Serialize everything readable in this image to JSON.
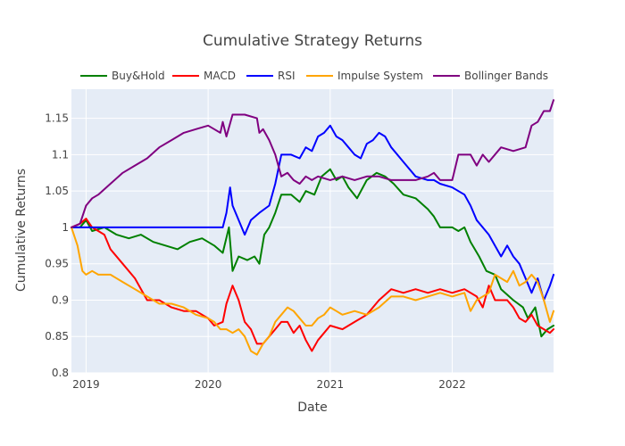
{
  "chart_data": {
    "type": "line",
    "title": "Cumulative Strategy Returns",
    "xlabel": "Date",
    "ylabel": "Cumulative Returns",
    "x_range": [
      "2018-11-20",
      "2022-11-01"
    ],
    "xlim": [
      2018.88,
      2022.83
    ],
    "ylim": [
      0.8,
      1.19
    ],
    "x_ticks": [
      {
        "label": "2019",
        "value": 2019.0
      },
      {
        "label": "2020",
        "value": 2020.0
      },
      {
        "label": "2021",
        "value": 2021.0
      },
      {
        "label": "2022",
        "value": 2022.0
      }
    ],
    "y_ticks": [
      {
        "label": "0.8",
        "value": 0.8
      },
      {
        "label": "0.85",
        "value": 0.85
      },
      {
        "label": "0.9",
        "value": 0.9
      },
      {
        "label": "0.95",
        "value": 0.95
      },
      {
        "label": "1",
        "value": 1.0
      },
      {
        "label": "1.05",
        "value": 1.05
      },
      {
        "label": "1.1",
        "value": 1.1
      },
      {
        "label": "1.15",
        "value": 1.15
      }
    ],
    "grid": true,
    "legend_position": "top",
    "background_color": "#e5ecf6",
    "series": [
      {
        "name": "Buy&Hold",
        "color": "#008000",
        "points": [
          [
            2018.88,
            1.0
          ],
          [
            2018.95,
            1.0
          ],
          [
            2019.0,
            1.01
          ],
          [
            2019.05,
            0.995
          ],
          [
            2019.15,
            1.0
          ],
          [
            2019.25,
            0.99
          ],
          [
            2019.35,
            0.985
          ],
          [
            2019.45,
            0.99
          ],
          [
            2019.55,
            0.98
          ],
          [
            2019.65,
            0.975
          ],
          [
            2019.75,
            0.97
          ],
          [
            2019.85,
            0.98
          ],
          [
            2019.95,
            0.985
          ],
          [
            2020.05,
            0.975
          ],
          [
            2020.12,
            0.965
          ],
          [
            2020.17,
            1.0
          ],
          [
            2020.2,
            0.94
          ],
          [
            2020.25,
            0.96
          ],
          [
            2020.32,
            0.955
          ],
          [
            2020.38,
            0.96
          ],
          [
            2020.42,
            0.95
          ],
          [
            2020.46,
            0.99
          ],
          [
            2020.5,
            1.0
          ],
          [
            2020.55,
            1.02
          ],
          [
            2020.6,
            1.045
          ],
          [
            2020.68,
            1.045
          ],
          [
            2020.75,
            1.035
          ],
          [
            2020.8,
            1.05
          ],
          [
            2020.87,
            1.045
          ],
          [
            2020.93,
            1.07
          ],
          [
            2021.0,
            1.08
          ],
          [
            2021.05,
            1.065
          ],
          [
            2021.1,
            1.07
          ],
          [
            2021.15,
            1.055
          ],
          [
            2021.22,
            1.04
          ],
          [
            2021.3,
            1.065
          ],
          [
            2021.38,
            1.075
          ],
          [
            2021.45,
            1.07
          ],
          [
            2021.52,
            1.06
          ],
          [
            2021.6,
            1.045
          ],
          [
            2021.7,
            1.04
          ],
          [
            2021.8,
            1.025
          ],
          [
            2021.85,
            1.015
          ],
          [
            2021.9,
            1.0
          ],
          [
            2022.0,
            1.0
          ],
          [
            2022.05,
            0.995
          ],
          [
            2022.1,
            1.0
          ],
          [
            2022.15,
            0.98
          ],
          [
            2022.22,
            0.96
          ],
          [
            2022.28,
            0.94
          ],
          [
            2022.35,
            0.935
          ],
          [
            2022.4,
            0.915
          ],
          [
            2022.5,
            0.9
          ],
          [
            2022.58,
            0.89
          ],
          [
            2022.62,
            0.875
          ],
          [
            2022.68,
            0.89
          ],
          [
            2022.73,
            0.85
          ],
          [
            2022.78,
            0.86
          ],
          [
            2022.83,
            0.865
          ]
        ]
      },
      {
        "name": "MACD",
        "color": "#ff0000",
        "points": [
          [
            2018.88,
            1.0
          ],
          [
            2018.95,
            1.005
          ],
          [
            2019.0,
            1.012
          ],
          [
            2019.05,
            1.0
          ],
          [
            2019.1,
            0.995
          ],
          [
            2019.15,
            0.99
          ],
          [
            2019.2,
            0.97
          ],
          [
            2019.3,
            0.95
          ],
          [
            2019.4,
            0.93
          ],
          [
            2019.5,
            0.9
          ],
          [
            2019.6,
            0.9
          ],
          [
            2019.7,
            0.89
          ],
          [
            2019.8,
            0.885
          ],
          [
            2019.9,
            0.885
          ],
          [
            2020.0,
            0.875
          ],
          [
            2020.05,
            0.865
          ],
          [
            2020.12,
            0.87
          ],
          [
            2020.15,
            0.895
          ],
          [
            2020.2,
            0.92
          ],
          [
            2020.25,
            0.9
          ],
          [
            2020.3,
            0.87
          ],
          [
            2020.35,
            0.86
          ],
          [
            2020.4,
            0.84
          ],
          [
            2020.45,
            0.84
          ],
          [
            2020.5,
            0.85
          ],
          [
            2020.55,
            0.86
          ],
          [
            2020.6,
            0.87
          ],
          [
            2020.65,
            0.87
          ],
          [
            2020.7,
            0.855
          ],
          [
            2020.75,
            0.865
          ],
          [
            2020.8,
            0.845
          ],
          [
            2020.85,
            0.83
          ],
          [
            2020.9,
            0.845
          ],
          [
            2020.95,
            0.855
          ],
          [
            2021.0,
            0.865
          ],
          [
            2021.1,
            0.86
          ],
          [
            2021.2,
            0.87
          ],
          [
            2021.3,
            0.88
          ],
          [
            2021.4,
            0.9
          ],
          [
            2021.5,
            0.915
          ],
          [
            2021.6,
            0.91
          ],
          [
            2021.7,
            0.915
          ],
          [
            2021.8,
            0.91
          ],
          [
            2021.9,
            0.915
          ],
          [
            2022.0,
            0.91
          ],
          [
            2022.1,
            0.915
          ],
          [
            2022.2,
            0.905
          ],
          [
            2022.25,
            0.89
          ],
          [
            2022.3,
            0.92
          ],
          [
            2022.35,
            0.9
          ],
          [
            2022.45,
            0.9
          ],
          [
            2022.5,
            0.89
          ],
          [
            2022.55,
            0.875
          ],
          [
            2022.6,
            0.87
          ],
          [
            2022.65,
            0.88
          ],
          [
            2022.7,
            0.865
          ],
          [
            2022.75,
            0.86
          ],
          [
            2022.8,
            0.855
          ],
          [
            2022.83,
            0.86
          ]
        ]
      },
      {
        "name": "RSI",
        "color": "#0000ff",
        "points": [
          [
            2018.88,
            1.0
          ],
          [
            2019.0,
            1.0
          ],
          [
            2019.5,
            1.0
          ],
          [
            2020.0,
            1.0
          ],
          [
            2020.12,
            1.0
          ],
          [
            2020.15,
            1.02
          ],
          [
            2020.18,
            1.055
          ],
          [
            2020.2,
            1.03
          ],
          [
            2020.25,
            1.01
          ],
          [
            2020.3,
            0.99
          ],
          [
            2020.35,
            1.01
          ],
          [
            2020.42,
            1.02
          ],
          [
            2020.5,
            1.03
          ],
          [
            2020.55,
            1.06
          ],
          [
            2020.6,
            1.1
          ],
          [
            2020.68,
            1.1
          ],
          [
            2020.75,
            1.095
          ],
          [
            2020.8,
            1.11
          ],
          [
            2020.85,
            1.105
          ],
          [
            2020.9,
            1.125
          ],
          [
            2020.95,
            1.13
          ],
          [
            2021.0,
            1.14
          ],
          [
            2021.05,
            1.125
          ],
          [
            2021.1,
            1.12
          ],
          [
            2021.15,
            1.11
          ],
          [
            2021.2,
            1.1
          ],
          [
            2021.25,
            1.095
          ],
          [
            2021.3,
            1.115
          ],
          [
            2021.35,
            1.12
          ],
          [
            2021.4,
            1.13
          ],
          [
            2021.45,
            1.125
          ],
          [
            2021.5,
            1.11
          ],
          [
            2021.6,
            1.09
          ],
          [
            2021.7,
            1.07
          ],
          [
            2021.8,
            1.065
          ],
          [
            2021.85,
            1.065
          ],
          [
            2021.9,
            1.06
          ],
          [
            2022.0,
            1.055
          ],
          [
            2022.05,
            1.05
          ],
          [
            2022.1,
            1.045
          ],
          [
            2022.15,
            1.03
          ],
          [
            2022.2,
            1.01
          ],
          [
            2022.3,
            0.99
          ],
          [
            2022.4,
            0.96
          ],
          [
            2022.45,
            0.975
          ],
          [
            2022.5,
            0.96
          ],
          [
            2022.55,
            0.95
          ],
          [
            2022.6,
            0.93
          ],
          [
            2022.65,
            0.91
          ],
          [
            2022.7,
            0.93
          ],
          [
            2022.75,
            0.9
          ],
          [
            2022.8,
            0.92
          ],
          [
            2022.83,
            0.935
          ]
        ]
      },
      {
        "name": "Impulse System",
        "color": "#ffa500",
        "points": [
          [
            2018.88,
            1.0
          ],
          [
            2018.93,
            0.975
          ],
          [
            2018.97,
            0.94
          ],
          [
            2019.0,
            0.935
          ],
          [
            2019.05,
            0.94
          ],
          [
            2019.1,
            0.935
          ],
          [
            2019.2,
            0.935
          ],
          [
            2019.3,
            0.925
          ],
          [
            2019.4,
            0.915
          ],
          [
            2019.5,
            0.905
          ],
          [
            2019.6,
            0.895
          ],
          [
            2019.7,
            0.895
          ],
          [
            2019.8,
            0.89
          ],
          [
            2019.9,
            0.88
          ],
          [
            2020.0,
            0.875
          ],
          [
            2020.05,
            0.87
          ],
          [
            2020.1,
            0.86
          ],
          [
            2020.15,
            0.86
          ],
          [
            2020.2,
            0.855
          ],
          [
            2020.25,
            0.86
          ],
          [
            2020.3,
            0.85
          ],
          [
            2020.35,
            0.83
          ],
          [
            2020.4,
            0.825
          ],
          [
            2020.45,
            0.84
          ],
          [
            2020.5,
            0.85
          ],
          [
            2020.55,
            0.87
          ],
          [
            2020.6,
            0.88
          ],
          [
            2020.65,
            0.89
          ],
          [
            2020.7,
            0.885
          ],
          [
            2020.75,
            0.875
          ],
          [
            2020.8,
            0.865
          ],
          [
            2020.85,
            0.865
          ],
          [
            2020.9,
            0.875
          ],
          [
            2020.95,
            0.88
          ],
          [
            2021.0,
            0.89
          ],
          [
            2021.05,
            0.885
          ],
          [
            2021.1,
            0.88
          ],
          [
            2021.2,
            0.885
          ],
          [
            2021.3,
            0.88
          ],
          [
            2021.4,
            0.89
          ],
          [
            2021.5,
            0.905
          ],
          [
            2021.6,
            0.905
          ],
          [
            2021.7,
            0.9
          ],
          [
            2021.8,
            0.905
          ],
          [
            2021.9,
            0.91
          ],
          [
            2022.0,
            0.905
          ],
          [
            2022.1,
            0.91
          ],
          [
            2022.15,
            0.885
          ],
          [
            2022.2,
            0.9
          ],
          [
            2022.3,
            0.91
          ],
          [
            2022.35,
            0.935
          ],
          [
            2022.45,
            0.925
          ],
          [
            2022.5,
            0.94
          ],
          [
            2022.55,
            0.92
          ],
          [
            2022.6,
            0.925
          ],
          [
            2022.65,
            0.935
          ],
          [
            2022.7,
            0.925
          ],
          [
            2022.75,
            0.9
          ],
          [
            2022.8,
            0.87
          ],
          [
            2022.83,
            0.885
          ]
        ]
      },
      {
        "name": "Bollinger Bands",
        "color": "#800080",
        "points": [
          [
            2018.88,
            1.0
          ],
          [
            2018.95,
            1.005
          ],
          [
            2019.0,
            1.03
          ],
          [
            2019.05,
            1.04
          ],
          [
            2019.1,
            1.045
          ],
          [
            2019.2,
            1.06
          ],
          [
            2019.3,
            1.075
          ],
          [
            2019.4,
            1.085
          ],
          [
            2019.5,
            1.095
          ],
          [
            2019.6,
            1.11
          ],
          [
            2019.7,
            1.12
          ],
          [
            2019.8,
            1.13
          ],
          [
            2019.9,
            1.135
          ],
          [
            2020.0,
            1.14
          ],
          [
            2020.05,
            1.135
          ],
          [
            2020.1,
            1.13
          ],
          [
            2020.12,
            1.145
          ],
          [
            2020.15,
            1.125
          ],
          [
            2020.2,
            1.155
          ],
          [
            2020.3,
            1.155
          ],
          [
            2020.4,
            1.15
          ],
          [
            2020.42,
            1.13
          ],
          [
            2020.45,
            1.135
          ],
          [
            2020.5,
            1.12
          ],
          [
            2020.55,
            1.1
          ],
          [
            2020.6,
            1.07
          ],
          [
            2020.65,
            1.075
          ],
          [
            2020.7,
            1.065
          ],
          [
            2020.75,
            1.06
          ],
          [
            2020.8,
            1.07
          ],
          [
            2020.85,
            1.065
          ],
          [
            2020.9,
            1.07
          ],
          [
            2021.0,
            1.065
          ],
          [
            2021.1,
            1.07
          ],
          [
            2021.2,
            1.065
          ],
          [
            2021.3,
            1.07
          ],
          [
            2021.4,
            1.07
          ],
          [
            2021.5,
            1.065
          ],
          [
            2021.6,
            1.065
          ],
          [
            2021.7,
            1.065
          ],
          [
            2021.8,
            1.07
          ],
          [
            2021.85,
            1.075
          ],
          [
            2021.9,
            1.065
          ],
          [
            2022.0,
            1.065
          ],
          [
            2022.05,
            1.1
          ],
          [
            2022.15,
            1.1
          ],
          [
            2022.2,
            1.085
          ],
          [
            2022.25,
            1.1
          ],
          [
            2022.3,
            1.09
          ],
          [
            2022.4,
            1.11
          ],
          [
            2022.5,
            1.105
          ],
          [
            2022.6,
            1.11
          ],
          [
            2022.65,
            1.14
          ],
          [
            2022.7,
            1.145
          ],
          [
            2022.75,
            1.16
          ],
          [
            2022.8,
            1.16
          ],
          [
            2022.83,
            1.175
          ]
        ]
      }
    ]
  }
}
